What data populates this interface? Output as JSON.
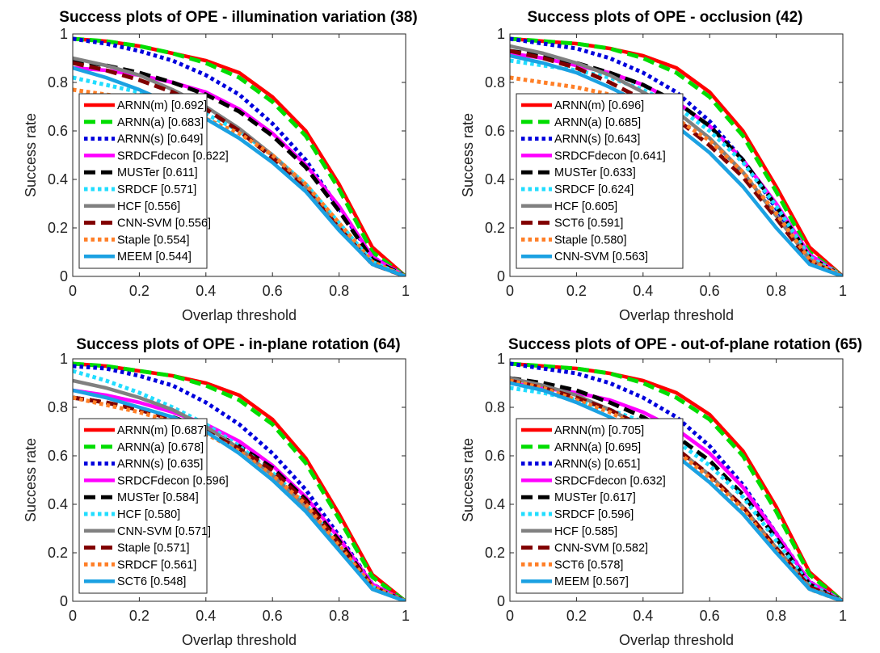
{
  "chart_data": [
    {
      "type": "line",
      "title": "Success plots of OPE - illumination variation (38)",
      "xlabel": "Overlap threshold",
      "ylabel": "Success rate",
      "xlim": [
        0,
        1
      ],
      "ylim": [
        0,
        1
      ],
      "x_ticks": [
        "0",
        "0.2",
        "0.4",
        "0.6",
        "0.8",
        "1"
      ],
      "y_ticks": [
        "0",
        "0.2",
        "0.4",
        "0.6",
        "0.8",
        "1"
      ],
      "legend_position": "lower-left",
      "x": [
        0,
        0.1,
        0.2,
        0.3,
        0.4,
        0.5,
        0.6,
        0.7,
        0.8,
        0.9,
        1.0
      ],
      "series": [
        {
          "legend": "ARNN(m) [0.692]",
          "color": "#ff0000",
          "style": "solid",
          "values": [
            0.98,
            0.97,
            0.95,
            0.92,
            0.89,
            0.84,
            0.74,
            0.6,
            0.38,
            0.12,
            0.0
          ]
        },
        {
          "legend": "ARNN(a) [0.683]",
          "color": "#00dd00",
          "style": "dashed",
          "values": [
            0.98,
            0.97,
            0.95,
            0.92,
            0.88,
            0.82,
            0.72,
            0.58,
            0.36,
            0.1,
            0.0
          ]
        },
        {
          "legend": "ARNN(s) [0.649]",
          "color": "#0000dd",
          "style": "dotted",
          "values": [
            0.98,
            0.96,
            0.93,
            0.89,
            0.83,
            0.75,
            0.63,
            0.48,
            0.28,
            0.08,
            0.0
          ]
        },
        {
          "legend": "SRDCFdecon [0.622]",
          "color": "#ff00ff",
          "style": "solid",
          "values": [
            0.86,
            0.85,
            0.83,
            0.8,
            0.76,
            0.69,
            0.59,
            0.46,
            0.29,
            0.08,
            0.0
          ]
        },
        {
          "legend": "MUSTer [0.611]",
          "color": "#000000",
          "style": "dashed",
          "values": [
            0.89,
            0.87,
            0.84,
            0.8,
            0.75,
            0.68,
            0.58,
            0.45,
            0.27,
            0.07,
            0.0
          ]
        },
        {
          "legend": "SRDCF [0.571]",
          "color": "#22ddff",
          "style": "dotted",
          "values": [
            0.82,
            0.79,
            0.76,
            0.72,
            0.67,
            0.6,
            0.5,
            0.38,
            0.22,
            0.06,
            0.0
          ]
        },
        {
          "legend": "HCF [0.556]",
          "color": "#808080",
          "style": "solid",
          "values": [
            0.9,
            0.87,
            0.83,
            0.77,
            0.7,
            0.61,
            0.5,
            0.37,
            0.2,
            0.05,
            0.0
          ]
        },
        {
          "legend": "CNN-SVM [0.556]",
          "color": "#800000",
          "style": "dashed",
          "values": [
            0.88,
            0.85,
            0.81,
            0.76,
            0.69,
            0.6,
            0.49,
            0.36,
            0.2,
            0.05,
            0.0
          ]
        },
        {
          "legend": "Staple [0.554]",
          "color": "#ff7f27",
          "style": "dotted",
          "values": [
            0.77,
            0.75,
            0.73,
            0.7,
            0.65,
            0.59,
            0.5,
            0.38,
            0.22,
            0.06,
            0.0
          ]
        },
        {
          "legend": "MEEM [0.544]",
          "color": "#1ba1e2",
          "style": "solid",
          "values": [
            0.86,
            0.82,
            0.77,
            0.71,
            0.65,
            0.57,
            0.47,
            0.35,
            0.19,
            0.05,
            0.0
          ]
        }
      ]
    },
    {
      "type": "line",
      "title": "Success plots of OPE - occlusion (42)",
      "xlabel": "Overlap threshold",
      "ylabel": "Success rate",
      "xlim": [
        0,
        1
      ],
      "ylim": [
        0,
        1
      ],
      "x_ticks": [
        "0",
        "0.2",
        "0.4",
        "0.6",
        "0.8",
        "1"
      ],
      "y_ticks": [
        "0",
        "0.2",
        "0.4",
        "0.6",
        "0.8",
        "1"
      ],
      "legend_position": "lower-left",
      "x": [
        0,
        0.1,
        0.2,
        0.3,
        0.4,
        0.5,
        0.6,
        0.7,
        0.8,
        0.9,
        1.0
      ],
      "series": [
        {
          "legend": "ARNN(m) [0.696]",
          "color": "#ff0000",
          "style": "solid",
          "values": [
            0.98,
            0.97,
            0.96,
            0.94,
            0.91,
            0.86,
            0.76,
            0.6,
            0.37,
            0.12,
            0.0
          ]
        },
        {
          "legend": "ARNN(a) [0.685]",
          "color": "#00dd00",
          "style": "dashed",
          "values": [
            0.98,
            0.97,
            0.96,
            0.94,
            0.9,
            0.84,
            0.74,
            0.58,
            0.35,
            0.1,
            0.0
          ]
        },
        {
          "legend": "ARNN(s) [0.643]",
          "color": "#0000dd",
          "style": "dotted",
          "values": [
            0.98,
            0.96,
            0.94,
            0.9,
            0.84,
            0.76,
            0.64,
            0.48,
            0.28,
            0.08,
            0.0
          ]
        },
        {
          "legend": "SRDCFdecon [0.641]",
          "color": "#ff00ff",
          "style": "solid",
          "values": [
            0.92,
            0.9,
            0.87,
            0.84,
            0.79,
            0.72,
            0.62,
            0.48,
            0.3,
            0.09,
            0.0
          ]
        },
        {
          "legend": "MUSTer [0.633]",
          "color": "#000000",
          "style": "dashed",
          "values": [
            0.93,
            0.91,
            0.88,
            0.84,
            0.79,
            0.72,
            0.62,
            0.48,
            0.29,
            0.08,
            0.0
          ]
        },
        {
          "legend": "SRDCF [0.624]",
          "color": "#22ddff",
          "style": "dotted",
          "values": [
            0.89,
            0.87,
            0.85,
            0.82,
            0.77,
            0.7,
            0.6,
            0.47,
            0.29,
            0.08,
            0.0
          ]
        },
        {
          "legend": "HCF [0.605]",
          "color": "#808080",
          "style": "solid",
          "values": [
            0.95,
            0.92,
            0.88,
            0.83,
            0.76,
            0.68,
            0.57,
            0.43,
            0.25,
            0.07,
            0.0
          ]
        },
        {
          "legend": "SCT6 [0.591]",
          "color": "#800000",
          "style": "dashed",
          "values": [
            0.93,
            0.9,
            0.86,
            0.8,
            0.73,
            0.65,
            0.54,
            0.41,
            0.24,
            0.06,
            0.0
          ]
        },
        {
          "legend": "Staple [0.580]",
          "color": "#ff7f27",
          "style": "dotted",
          "values": [
            0.82,
            0.8,
            0.78,
            0.75,
            0.71,
            0.65,
            0.56,
            0.43,
            0.26,
            0.07,
            0.0
          ]
        },
        {
          "legend": "CNN-SVM [0.563]",
          "color": "#1ba1e2",
          "style": "solid",
          "values": [
            0.91,
            0.88,
            0.84,
            0.78,
            0.71,
            0.62,
            0.51,
            0.37,
            0.2,
            0.05,
            0.0
          ]
        }
      ]
    },
    {
      "type": "line",
      "title": "Success plots of OPE - in-plane rotation (64)",
      "xlabel": "Overlap threshold",
      "ylabel": "Success rate",
      "xlim": [
        0,
        1
      ],
      "ylim": [
        0,
        1
      ],
      "x_ticks": [
        "0",
        "0.2",
        "0.4",
        "0.6",
        "0.8",
        "1"
      ],
      "y_ticks": [
        "0",
        "0.2",
        "0.4",
        "0.6",
        "0.8",
        "1"
      ],
      "legend_position": "lower-left",
      "x": [
        0,
        0.1,
        0.2,
        0.3,
        0.4,
        0.5,
        0.6,
        0.7,
        0.8,
        0.9,
        1.0
      ],
      "series": [
        {
          "legend": "ARNN(m) [0.687]",
          "color": "#ff0000",
          "style": "solid",
          "values": [
            0.98,
            0.97,
            0.95,
            0.93,
            0.9,
            0.85,
            0.75,
            0.59,
            0.36,
            0.11,
            0.0
          ]
        },
        {
          "legend": "ARNN(a) [0.678]",
          "color": "#00dd00",
          "style": "dashed",
          "values": [
            0.98,
            0.97,
            0.95,
            0.93,
            0.89,
            0.83,
            0.73,
            0.57,
            0.34,
            0.1,
            0.0
          ]
        },
        {
          "legend": "ARNN(s) [0.635]",
          "color": "#0000dd",
          "style": "dotted",
          "values": [
            0.97,
            0.96,
            0.93,
            0.89,
            0.82,
            0.73,
            0.61,
            0.46,
            0.27,
            0.07,
            0.0
          ]
        },
        {
          "legend": "SRDCFdecon [0.596]",
          "color": "#ff00ff",
          "style": "solid",
          "values": [
            0.87,
            0.85,
            0.82,
            0.78,
            0.73,
            0.66,
            0.56,
            0.43,
            0.26,
            0.07,
            0.0
          ]
        },
        {
          "legend": "MUSTer [0.584]",
          "color": "#000000",
          "style": "dashed",
          "values": [
            0.84,
            0.82,
            0.79,
            0.76,
            0.71,
            0.64,
            0.55,
            0.42,
            0.25,
            0.06,
            0.0
          ]
        },
        {
          "legend": "HCF [0.580]",
          "color": "#22ddff",
          "style": "dotted",
          "values": [
            0.95,
            0.91,
            0.86,
            0.8,
            0.73,
            0.64,
            0.53,
            0.4,
            0.23,
            0.06,
            0.0
          ]
        },
        {
          "legend": "CNN-SVM [0.571]",
          "color": "#808080",
          "style": "solid",
          "values": [
            0.91,
            0.88,
            0.84,
            0.79,
            0.72,
            0.63,
            0.52,
            0.39,
            0.22,
            0.05,
            0.0
          ]
        },
        {
          "legend": "Staple [0.571]",
          "color": "#800000",
          "style": "dashed",
          "values": [
            0.84,
            0.82,
            0.79,
            0.75,
            0.7,
            0.63,
            0.54,
            0.41,
            0.24,
            0.06,
            0.0
          ]
        },
        {
          "legend": "SRDCF [0.561]",
          "color": "#ff7f27",
          "style": "dotted",
          "values": [
            0.84,
            0.81,
            0.78,
            0.74,
            0.69,
            0.62,
            0.52,
            0.4,
            0.23,
            0.06,
            0.0
          ]
        },
        {
          "legend": "SCT6 [0.548]",
          "color": "#1ba1e2",
          "style": "solid",
          "values": [
            0.87,
            0.84,
            0.8,
            0.76,
            0.7,
            0.61,
            0.5,
            0.37,
            0.21,
            0.05,
            0.0
          ]
        }
      ]
    },
    {
      "type": "line",
      "title": "Success plots of OPE - out-of-plane rotation (65)",
      "xlabel": "Overlap threshold",
      "ylabel": "Success rate",
      "xlim": [
        0,
        1
      ],
      "ylim": [
        0,
        1
      ],
      "x_ticks": [
        "0",
        "0.2",
        "0.4",
        "0.6",
        "0.8",
        "1"
      ],
      "y_ticks": [
        "0",
        "0.2",
        "0.4",
        "0.6",
        "0.8",
        "1"
      ],
      "legend_position": "lower-left",
      "x": [
        0,
        0.1,
        0.2,
        0.3,
        0.4,
        0.5,
        0.6,
        0.7,
        0.8,
        0.9,
        1.0
      ],
      "series": [
        {
          "legend": "ARNN(m) [0.705]",
          "color": "#ff0000",
          "style": "solid",
          "values": [
            0.98,
            0.97,
            0.96,
            0.94,
            0.91,
            0.86,
            0.77,
            0.62,
            0.39,
            0.12,
            0.0
          ]
        },
        {
          "legend": "ARNN(a) [0.695]",
          "color": "#00dd00",
          "style": "dashed",
          "values": [
            0.98,
            0.97,
            0.96,
            0.94,
            0.9,
            0.84,
            0.75,
            0.6,
            0.37,
            0.11,
            0.0
          ]
        },
        {
          "legend": "ARNN(s) [0.651]",
          "color": "#0000dd",
          "style": "dotted",
          "values": [
            0.98,
            0.96,
            0.94,
            0.9,
            0.84,
            0.76,
            0.64,
            0.48,
            0.28,
            0.08,
            0.0
          ]
        },
        {
          "legend": "SRDCFdecon [0.632]",
          "color": "#ff00ff",
          "style": "solid",
          "values": [
            0.9,
            0.88,
            0.86,
            0.83,
            0.78,
            0.71,
            0.61,
            0.47,
            0.28,
            0.08,
            0.0
          ]
        },
        {
          "legend": "MUSTer [0.617]",
          "color": "#000000",
          "style": "dashed",
          "values": [
            0.92,
            0.9,
            0.87,
            0.82,
            0.76,
            0.68,
            0.58,
            0.44,
            0.26,
            0.07,
            0.0
          ]
        },
        {
          "legend": "SRDCF [0.596]",
          "color": "#22ddff",
          "style": "dotted",
          "values": [
            0.88,
            0.86,
            0.83,
            0.79,
            0.74,
            0.66,
            0.56,
            0.43,
            0.25,
            0.07,
            0.0
          ]
        },
        {
          "legend": "HCF [0.585]",
          "color": "#808080",
          "style": "solid",
          "values": [
            0.92,
            0.89,
            0.85,
            0.79,
            0.72,
            0.63,
            0.52,
            0.39,
            0.22,
            0.06,
            0.0
          ]
        },
        {
          "legend": "CNN-SVM [0.582]",
          "color": "#800000",
          "style": "dashed",
          "values": [
            0.91,
            0.88,
            0.84,
            0.79,
            0.72,
            0.63,
            0.52,
            0.39,
            0.22,
            0.06,
            0.0
          ]
        },
        {
          "legend": "SCT6 [0.578]",
          "color": "#ff7f27",
          "style": "dotted",
          "values": [
            0.91,
            0.88,
            0.83,
            0.78,
            0.71,
            0.62,
            0.51,
            0.38,
            0.21,
            0.05,
            0.0
          ]
        },
        {
          "legend": "MEEM [0.567]",
          "color": "#1ba1e2",
          "style": "solid",
          "values": [
            0.9,
            0.87,
            0.82,
            0.76,
            0.69,
            0.6,
            0.49,
            0.36,
            0.2,
            0.05,
            0.0
          ]
        }
      ]
    }
  ]
}
